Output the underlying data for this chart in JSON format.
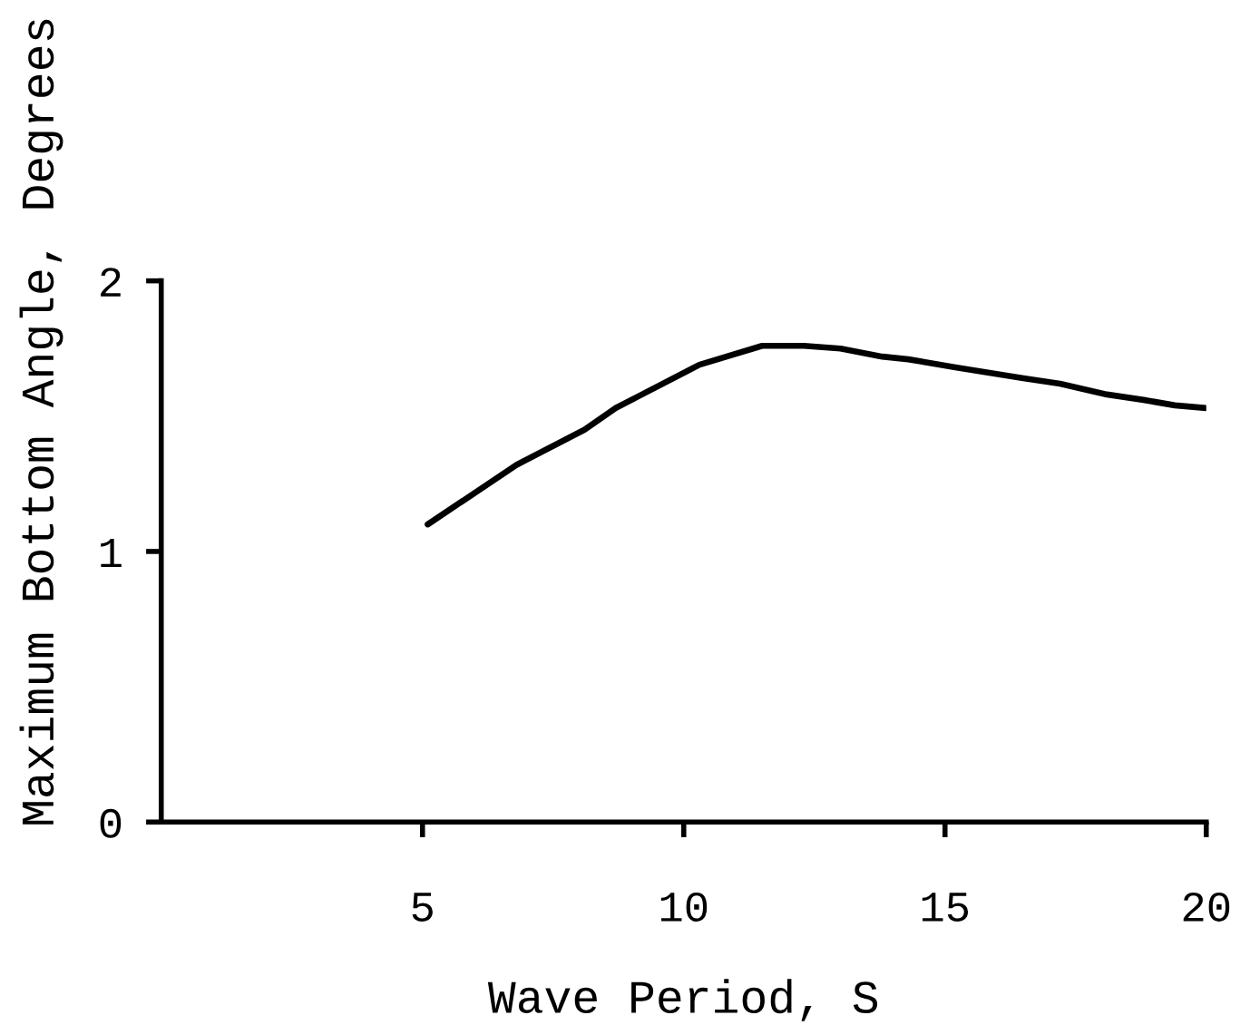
{
  "chart_data": {
    "type": "line",
    "xlabel": "Wave Period, S",
    "ylabel": "Maximum Bottom Angle, Degrees",
    "x": [
      5.1,
      6.8,
      8.1,
      8.7,
      9.2,
      10.3,
      11.5,
      12.3,
      13.0,
      13.8,
      14.3,
      15.2,
      16.5,
      17.2,
      18.1,
      18.8,
      19.4,
      20.0
    ],
    "series": [
      {
        "color": "#000000",
        "values": [
          1.1,
          1.32,
          1.45,
          1.53,
          1.58,
          1.69,
          1.76,
          1.76,
          1.75,
          1.72,
          1.71,
          1.68,
          1.64,
          1.62,
          1.58,
          1.56,
          1.54,
          1.53
        ]
      }
    ],
    "xlim": [
      0,
      20
    ],
    "ylim": [
      0,
      2
    ],
    "xticks": [
      5,
      10,
      15,
      20
    ],
    "yticks": [
      0,
      1,
      2
    ],
    "line_style": "solid"
  }
}
